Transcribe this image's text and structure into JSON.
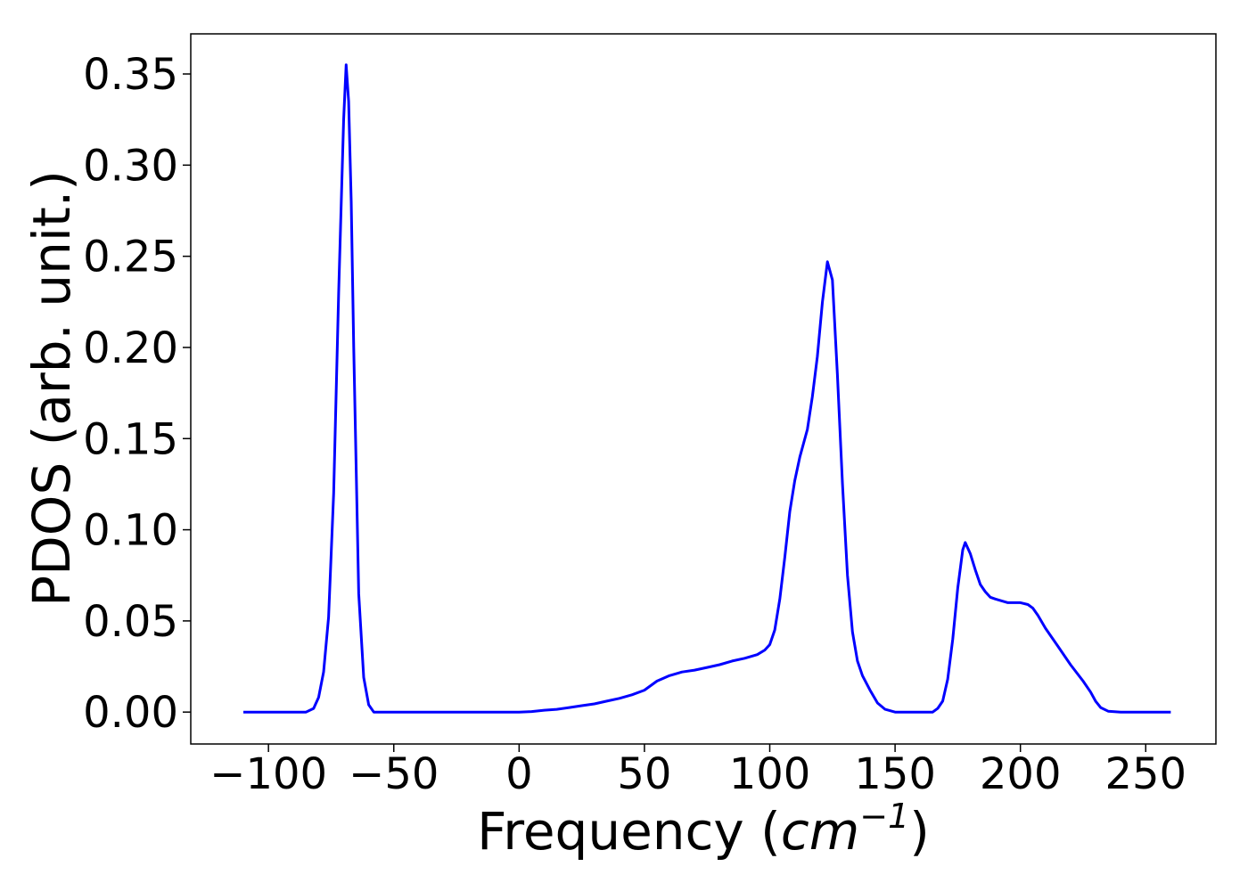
{
  "chart_data": {
    "type": "line",
    "title": "",
    "xlabel": "Frequency (",
    "xlabel_unit_base": "cm",
    "xlabel_unit_exp": "−1",
    "xlabel_close": ")",
    "ylabel": "PDOS (arb. unit.)",
    "xlim": [
      -131,
      278
    ],
    "ylim": [
      -0.0175,
      0.372
    ],
    "x_ticks": [
      -100,
      -50,
      0,
      50,
      100,
      150,
      200,
      250
    ],
    "x_tick_labels": [
      "−100",
      "−50",
      "0",
      "50",
      "100",
      "150",
      "200",
      "250"
    ],
    "y_ticks": [
      0.0,
      0.05,
      0.1,
      0.15,
      0.2,
      0.25,
      0.3,
      0.35
    ],
    "y_tick_labels": [
      "0.00",
      "0.05",
      "0.10",
      "0.15",
      "0.20",
      "0.25",
      "0.30",
      "0.35"
    ],
    "grid": false,
    "legend": "none",
    "series": [
      {
        "color": "#0000ff",
        "x": [
          -110,
          -100,
          -90,
          -85,
          -82,
          -80,
          -78,
          -76,
          -74,
          -72,
          -70,
          -69,
          -68,
          -67,
          -66,
          -64,
          -62,
          -60,
          -58,
          -50,
          -40,
          -30,
          -20,
          -10,
          0,
          5,
          10,
          15,
          20,
          25,
          30,
          35,
          40,
          45,
          50,
          55,
          60,
          65,
          70,
          75,
          80,
          85,
          90,
          95,
          98,
          100,
          102,
          104,
          106,
          108,
          110,
          112,
          115,
          117,
          119,
          121,
          123,
          125,
          127,
          129,
          131,
          133,
          135,
          137,
          140,
          143,
          146,
          150,
          155,
          160,
          165,
          167,
          169,
          171,
          173,
          175,
          177,
          178,
          180,
          182,
          184,
          186,
          188,
          190,
          195,
          200,
          203,
          205,
          207,
          210,
          215,
          220,
          225,
          228,
          230,
          232,
          235,
          240,
          250,
          260
        ],
        "y": [
          0.0,
          0.0,
          0.0,
          0.0,
          0.002,
          0.008,
          0.022,
          0.052,
          0.12,
          0.23,
          0.325,
          0.355,
          0.335,
          0.28,
          0.2,
          0.065,
          0.019,
          0.004,
          0.0,
          0.0,
          0.0,
          0.0,
          0.0,
          0.0,
          0.0,
          0.0003,
          0.001,
          0.0015,
          0.0025,
          0.0035,
          0.0045,
          0.006,
          0.0075,
          0.0095,
          0.012,
          0.017,
          0.02,
          0.022,
          0.023,
          0.0245,
          0.026,
          0.028,
          0.0295,
          0.0315,
          0.034,
          0.037,
          0.045,
          0.062,
          0.085,
          0.11,
          0.127,
          0.14,
          0.155,
          0.173,
          0.195,
          0.225,
          0.247,
          0.237,
          0.185,
          0.125,
          0.075,
          0.044,
          0.028,
          0.02,
          0.012,
          0.005,
          0.0015,
          0.0,
          0.0,
          0.0,
          0.0,
          0.002,
          0.006,
          0.018,
          0.04,
          0.068,
          0.089,
          0.093,
          0.087,
          0.078,
          0.07,
          0.066,
          0.063,
          0.062,
          0.06,
          0.06,
          0.059,
          0.057,
          0.053,
          0.046,
          0.036,
          0.026,
          0.017,
          0.011,
          0.006,
          0.0025,
          0.0005,
          0.0,
          0.0,
          0.0
        ]
      }
    ]
  }
}
